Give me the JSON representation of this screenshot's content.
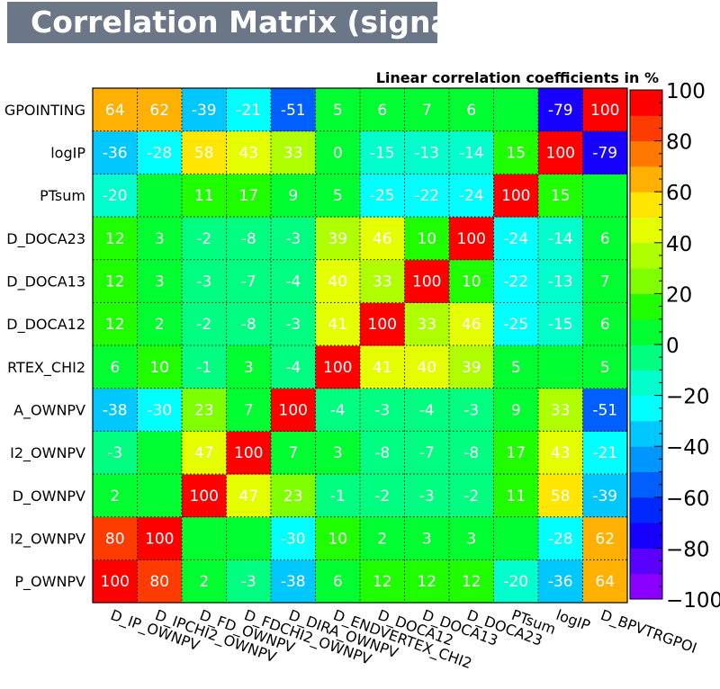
{
  "chart_data": {
    "type": "heatmap",
    "title": "Correlation Matrix (signal)",
    "colorbar_title": "Linear correlation coefficients in %",
    "variables": [
      "D_IP_OWNPV",
      "D_IPCHI2_OWNPV",
      "D_FD_OWNPV",
      "D_FDCHI2_OWNPV",
      "D_DIRA_OWNPV",
      "D_ENDVERTEX_CHI2",
      "D_DOCA12",
      "D_DOCA13",
      "D_DOCA23",
      "PTsum",
      "logIP",
      "D_BPVTRGPOINTING"
    ],
    "x_labels": [
      "D_IP_OWNPV",
      "D_IPCHI2_OWNPV",
      "D_FD_OWNPV",
      "D_FDCHI2_OWNPV",
      "D_DIRA_OWNPV",
      "D_ENDVERTEX_CHI2",
      "D_DOCA12",
      "D_DOCA13",
      "D_DOCA23",
      "PTsum",
      "logIP",
      "D_BPVTRGPOI"
    ],
    "y_labels": [
      "P_OWNPV",
      "I2_OWNPV",
      "D_OWNPV",
      "I2_OWNPV",
      "A_OWNPV",
      "RTEX_CHI2",
      "D_DOCA12",
      "D_DOCA13",
      "D_DOCA23",
      "PTsum",
      "logIP",
      "GPOINTING"
    ],
    "matrix": [
      [
        100,
        80,
        2,
        -3,
        -38,
        6,
        12,
        12,
        12,
        -20,
        -36,
        64
      ],
      [
        80,
        100,
        0,
        0,
        -30,
        10,
        2,
        3,
        3,
        0,
        -28,
        62
      ],
      [
        2,
        0,
        100,
        47,
        23,
        -1,
        -2,
        -3,
        -2,
        11,
        58,
        -39
      ],
      [
        -3,
        0,
        47,
        100,
        7,
        3,
        -8,
        -7,
        -8,
        17,
        43,
        -21
      ],
      [
        -38,
        -30,
        23,
        7,
        100,
        -4,
        -3,
        -4,
        -3,
        9,
        33,
        -51
      ],
      [
        6,
        10,
        -1,
        3,
        -4,
        100,
        41,
        40,
        39,
        5,
        0,
        5
      ],
      [
        12,
        2,
        -2,
        -8,
        -3,
        41,
        100,
        33,
        46,
        -25,
        -15,
        6
      ],
      [
        12,
        3,
        -3,
        -7,
        -4,
        40,
        33,
        100,
        10,
        -22,
        -13,
        7
      ],
      [
        12,
        3,
        -2,
        -8,
        -3,
        39,
        46,
        10,
        100,
        -24,
        -14,
        6
      ],
      [
        -20,
        0,
        11,
        17,
        9,
        5,
        -25,
        -22,
        -24,
        100,
        15,
        0
      ],
      [
        -36,
        -28,
        58,
        43,
        33,
        0,
        -15,
        -13,
        -14,
        15,
        100,
        -79
      ],
      [
        64,
        62,
        -39,
        -21,
        -51,
        5,
        6,
        7,
        6,
        0,
        -79,
        100
      ]
    ],
    "hidden_labels": [
      [
        1,
        2
      ],
      [
        1,
        3
      ],
      [
        1,
        9
      ],
      [
        2,
        1
      ],
      [
        3,
        1
      ],
      [
        5,
        10
      ],
      [
        9,
        1
      ],
      [
        9,
        11
      ],
      [
        11,
        9
      ]
    ],
    "zlim": [
      -100,
      100
    ],
    "colorbar_ticks": [
      100,
      80,
      60,
      40,
      20,
      0,
      -20,
      -40,
      -60,
      -80,
      -100
    ],
    "colorbar_tick_labels": [
      "100",
      "80",
      "60",
      "40",
      "20",
      "0",
      "−20",
      "−40",
      "−60",
      "−80",
      "−100"
    ]
  }
}
